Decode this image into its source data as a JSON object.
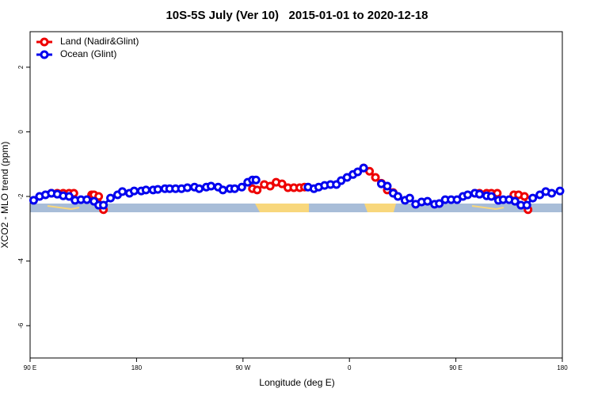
{
  "chart_data": {
    "type": "line",
    "title": "10S-5S July (Ver 10)   2015-01-01 to 2020-12-18",
    "x_label": "Longitude (deg E)",
    "y_label": "XCO2 - MLO trend (ppm)",
    "xlim": [
      90,
      540
    ],
    "xticks": [
      {
        "value": 90,
        "label": "90 E"
      },
      180,
      {
        "value": 270,
        "label": "90 W"
      },
      {
        "value": 360,
        "label": "0"
      },
      {
        "value": 450,
        "label": "90 E"
      },
      {
        "value": 540,
        "label": "180"
      }
    ],
    "ylim": [
      -7,
      3.1
    ],
    "yticks": [
      2,
      0,
      -2,
      -4,
      -6
    ],
    "legend": "topleft",
    "series": [
      {
        "name": "Land (Nadir&Glint)",
        "color": "#ee0000",
        "x": [
          108,
          113,
          118,
          123,
          127,
          null,
          142,
          144,
          148,
          152,
          null,
          278,
          282,
          288,
          293,
          298,
          303,
          308,
          313,
          318,
          322,
          null,
          372,
          377,
          382,
          387,
          392,
          397,
          null,
          466,
          470,
          476,
          480,
          485,
          null,
          499,
          503,
          508,
          511
        ],
        "values": [
          -1.9,
          -1.9,
          -1.9,
          -1.9,
          -1.9,
          null,
          -1.95,
          -1.95,
          -2.0,
          -2.41,
          null,
          -1.76,
          -1.8,
          -1.63,
          -1.68,
          -1.56,
          -1.61,
          -1.73,
          -1.73,
          -1.73,
          -1.71,
          null,
          -1.12,
          -1.22,
          -1.41,
          -1.59,
          -1.8,
          -1.88,
          null,
          -1.9,
          -1.9,
          -1.9,
          -1.9,
          -1.9,
          null,
          -1.95,
          -1.95,
          -2.0,
          -2.41
        ]
      },
      {
        "name": "Ocean (Glint)",
        "color": "#0000ee",
        "x": [
          93,
          98,
          103,
          108,
          113,
          118,
          123,
          128,
          133,
          138,
          144,
          148,
          152,
          158,
          164,
          168,
          174,
          178,
          184,
          188,
          194,
          198,
          204,
          208,
          213,
          218,
          223,
          229,
          233,
          239,
          243,
          249,
          253,
          259,
          263,
          269,
          274,
          278,
          281,
          null,
          325,
          330,
          334,
          339,
          344,
          349,
          353,
          358,
          363,
          367,
          372,
          null,
          387,
          392,
          397,
          401,
          407,
          411,
          416,
          421,
          426,
          432,
          436,
          441,
          446,
          451,
          456,
          460,
          466,
          470,
          476,
          480,
          486,
          490,
          495,
          500,
          505,
          510,
          515,
          521,
          526,
          531,
          538
        ],
        "values": [
          -2.12,
          -2.0,
          -1.95,
          -1.9,
          -1.93,
          -1.98,
          -2.0,
          -2.12,
          -2.1,
          -2.1,
          -2.15,
          -2.27,
          -2.27,
          -2.05,
          -1.95,
          -1.85,
          -1.9,
          -1.83,
          -1.83,
          -1.8,
          -1.8,
          -1.78,
          -1.76,
          -1.76,
          -1.76,
          -1.76,
          -1.73,
          -1.71,
          -1.76,
          -1.71,
          -1.68,
          -1.71,
          -1.8,
          -1.76,
          -1.76,
          -1.71,
          -1.56,
          -1.49,
          -1.49,
          null,
          -1.71,
          -1.76,
          -1.71,
          -1.66,
          -1.63,
          -1.63,
          -1.51,
          -1.41,
          -1.32,
          -1.24,
          -1.12,
          null,
          -1.61,
          -1.68,
          -1.9,
          -2.0,
          -2.12,
          -2.05,
          -2.24,
          -2.17,
          -2.15,
          -2.24,
          -2.22,
          -2.1,
          -2.1,
          -2.1,
          -2.0,
          -1.95,
          -1.9,
          -1.93,
          -1.98,
          -2.0,
          -2.12,
          -2.1,
          -2.1,
          -2.15,
          -2.27,
          -2.27,
          -2.05,
          -1.95,
          -1.85,
          -1.9,
          -1.83
        ]
      }
    ]
  }
}
